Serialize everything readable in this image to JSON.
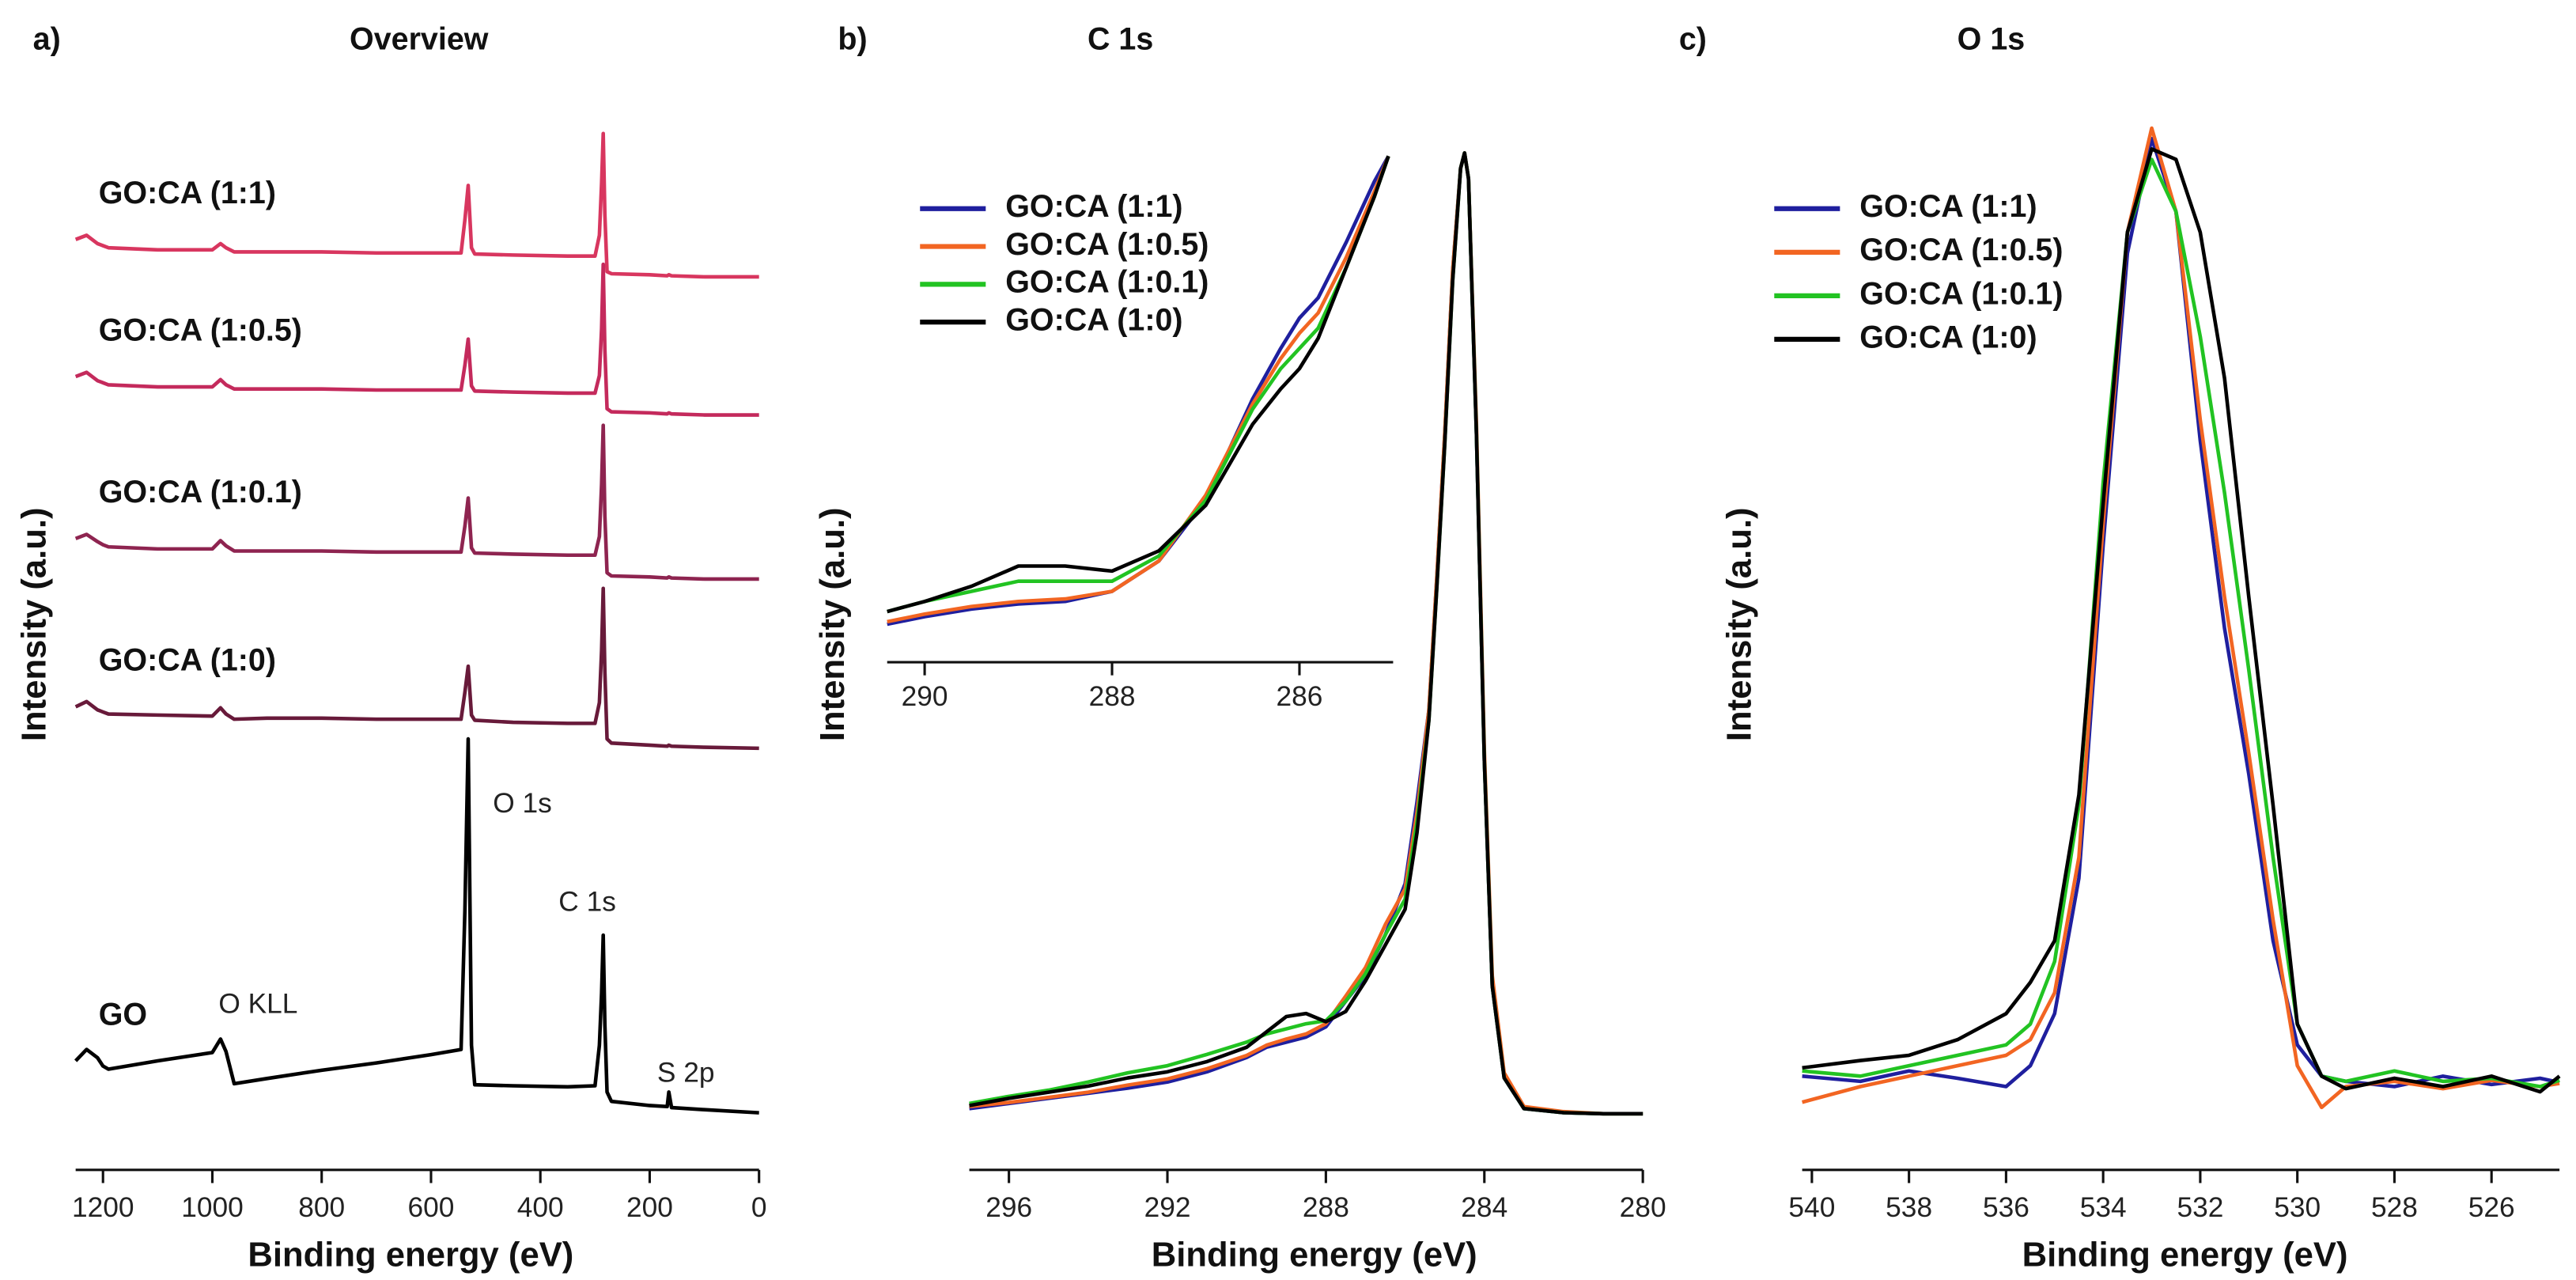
{
  "chart_data": [
    {
      "type": "line",
      "label": "a)",
      "title": "Overview",
      "xlabel": "Binding energy (eV)",
      "ylabel": "Intensity (a.u.)",
      "legend": "inline",
      "x": [
        1250,
        1230,
        1210,
        1200,
        1190,
        1100,
        1000,
        985,
        975,
        960,
        900,
        800,
        700,
        600,
        545,
        538,
        532,
        526,
        520,
        450,
        350,
        300,
        292,
        288,
        285,
        282,
        278,
        270,
        200,
        168,
        165,
        160,
        100,
        0
      ],
      "xlim": [
        1250,
        0
      ],
      "xticks": [
        1200,
        1000,
        800,
        600,
        400,
        200,
        0
      ],
      "ylim": [
        0,
        100
      ],
      "series": [
        {
          "name": "GO:CA (1:1)",
          "color": "#d8365f",
          "values": [
            89.6,
            90.0,
            89.2,
            89.0,
            88.8,
            88.6,
            88.6,
            89.2,
            88.8,
            88.4,
            88.4,
            88.4,
            88.3,
            88.3,
            88.3,
            91.5,
            94.8,
            88.8,
            88.2,
            88.1,
            88.0,
            88.0,
            90,
            95,
            99.8,
            92,
            86.5,
            86.3,
            86.2,
            86.1,
            86.2,
            86.1,
            86.0,
            86.0
          ]
        },
        {
          "name": "GO:CA (1:0.5)",
          "color": "#c42a5c",
          "values": [
            76.4,
            76.8,
            76.0,
            75.8,
            75.6,
            75.4,
            75.4,
            76.1,
            75.6,
            75.2,
            75.2,
            75.2,
            75.1,
            75.1,
            75.1,
            77.5,
            80.0,
            75.5,
            75.0,
            74.9,
            74.8,
            74.8,
            76.5,
            81,
            87.2,
            79,
            73.3,
            73.0,
            72.9,
            72.8,
            72.9,
            72.8,
            72.7,
            72.7
          ]
        },
        {
          "name": "GO:CA (1:0.1)",
          "color": "#8e2450",
          "values": [
            60.8,
            61.2,
            60.5,
            60.2,
            60.0,
            59.8,
            59.8,
            60.6,
            60.1,
            59.6,
            59.6,
            59.6,
            59.5,
            59.5,
            59.5,
            62,
            64.7,
            59.9,
            59.4,
            59.3,
            59.2,
            59.2,
            61,
            66,
            71.7,
            63,
            57.5,
            57.2,
            57.1,
            57.0,
            57.1,
            57.0,
            56.9,
            56.9
          ]
        },
        {
          "name": "GO:CA (1:0)",
          "color": "#681a3a",
          "values": [
            44.6,
            45.1,
            44.3,
            44.1,
            43.9,
            43.8,
            43.7,
            44.5,
            43.9,
            43.4,
            43.5,
            43.5,
            43.4,
            43.4,
            43.4,
            46,
            48.5,
            43.8,
            43.3,
            43.1,
            43.0,
            43.0,
            45,
            50,
            56,
            48,
            41.5,
            41.1,
            40.9,
            40.8,
            40.9,
            40.8,
            40.7,
            40.6
          ]
        },
        {
          "name": "GO",
          "color": "#000000",
          "values": [
            10.5,
            11.6,
            10.8,
            10,
            9.7,
            10.5,
            11.3,
            12.6,
            11.4,
            8.3,
            8.8,
            9.6,
            10.3,
            11.1,
            11.6,
            25,
            41.5,
            12,
            8.2,
            8.1,
            8,
            8.1,
            12,
            17,
            22.6,
            14,
            7.5,
            6.6,
            6.2,
            6.1,
            7.5,
            6.0,
            5.8,
            5.5
          ]
        }
      ],
      "annotations": [
        "O 1s",
        "C 1s",
        "S 2p",
        "O KLL"
      ]
    },
    {
      "type": "line",
      "label": "b)",
      "title": "C 1s",
      "xlabel": "Binding energy (eV)",
      "ylabel": "Intensity (a.u.)",
      "legend": "upper left",
      "x": [
        297,
        296,
        295,
        294,
        293,
        292,
        291,
        290,
        289.5,
        289,
        288.5,
        288,
        287.5,
        287,
        286.5,
        286,
        285.7,
        285.4,
        285.2,
        285,
        284.8,
        284.6,
        284.5,
        284.4,
        284.2,
        284,
        283.8,
        283.5,
        283,
        282,
        281,
        280
      ],
      "xlim": [
        297,
        280
      ],
      "xticks": [
        296,
        292,
        288,
        284,
        280
      ],
      "ylim": [
        0,
        100
      ],
      "series": [
        {
          "name": "GO:CA (1:1)",
          "color": "#1f1f9e",
          "values": [
            6,
            6.5,
            7,
            7.5,
            8,
            8.6,
            9.6,
            11,
            12,
            12.5,
            13,
            14,
            16.5,
            19,
            23,
            28,
            36,
            45,
            58,
            72,
            88,
            98,
            99.5,
            97,
            72,
            40,
            18,
            9,
            6,
            5.6,
            5.5,
            5.5
          ]
        },
        {
          "name": "GO:CA (1:0.5)",
          "color": "#f26522",
          "values": [
            6.2,
            6.6,
            7.1,
            7.6,
            8.3,
            8.9,
            9.9,
            11.2,
            12.2,
            12.8,
            13.3,
            14.3,
            17,
            19.8,
            24,
            27.5,
            35,
            45,
            58,
            72,
            88,
            98,
            99.5,
            97,
            73,
            41,
            19,
            9.5,
            6.2,
            5.7,
            5.5,
            5.5
          ]
        },
        {
          "name": "GO:CA (1:0.1)",
          "color": "#22c322",
          "values": [
            6.5,
            7.2,
            7.8,
            8.6,
            9.5,
            10.2,
            11.3,
            12.5,
            13.3,
            13.8,
            14.3,
            14.6,
            16.5,
            19.2,
            23,
            26.5,
            34,
            44,
            57,
            71,
            87,
            98,
            99.5,
            97,
            72,
            40,
            18,
            9,
            6,
            5.6,
            5.5,
            5.5
          ]
        },
        {
          "name": "GO:CA (1:0)",
          "color": "#000000",
          "values": [
            6.3,
            7,
            7.6,
            8.2,
            9,
            9.6,
            10.6,
            12,
            13.5,
            15,
            15.3,
            14.5,
            15.5,
            18.5,
            22,
            25.5,
            33,
            44,
            57,
            71,
            87,
            98,
            99.5,
            97,
            72,
            40,
            18,
            9,
            6,
            5.6,
            5.5,
            5.5
          ]
        }
      ],
      "inset": {
        "x": [
          290.4,
          290,
          289.5,
          289,
          288.5,
          288,
          287.5,
          287,
          286.5,
          286.2,
          286,
          285.8,
          285.5,
          285.2,
          285.05
        ],
        "xlim": [
          290.4,
          285
        ],
        "xticks": [
          290,
          288,
          286
        ],
        "ylim": [
          0,
          100
        ],
        "series": [
          {
            "color": "#1f1f9e",
            "values": [
              7.5,
              9,
              10.5,
              11.5,
              12,
              14,
              20,
              32,
              52,
              62,
              68,
              72,
              83,
              95,
              100
            ]
          },
          {
            "color": "#f26522",
            "values": [
              8,
              9.5,
              11,
              12,
              12.5,
              14,
              20,
              33,
              51,
              60,
              65,
              69,
              80,
              93,
              100
            ]
          },
          {
            "color": "#22c322",
            "values": [
              10,
              12,
              14,
              16,
              16,
              16,
              21,
              32,
              50,
              58,
              62,
              66,
              78,
              92,
              100
            ]
          },
          {
            "color": "#000000",
            "values": [
              10,
              12,
              15,
              19,
              19,
              18,
              22,
              31,
              47,
              54,
              58,
              64,
              78,
              92,
              100
            ]
          }
        ]
      }
    },
    {
      "type": "line",
      "label": "c)",
      "title": "O 1s",
      "xlabel": "Binding energy (eV)",
      "ylabel": "Intensity (a.u.)",
      "legend": "upper left",
      "x": [
        540.2,
        539,
        538,
        537,
        536,
        535.5,
        535,
        534.5,
        534,
        533.5,
        533,
        532.5,
        532,
        531.5,
        531,
        530.5,
        530,
        529.5,
        529,
        528,
        527,
        526,
        525,
        524.6
      ],
      "xlim": [
        540.2,
        524.6
      ],
      "xticks": [
        540,
        538,
        536,
        534,
        532,
        530,
        528,
        526
      ],
      "ylim": [
        0,
        100
      ],
      "series": [
        {
          "name": "GO:CA (1:1)",
          "color": "#1f1f9e",
          "values": [
            9,
            8.5,
            9.5,
            8.8,
            8,
            10,
            15,
            28,
            60,
            88,
            99,
            92,
            70,
            52,
            38,
            22,
            12,
            9,
            8.5,
            8,
            9,
            8.2,
            8.8,
            8.4
          ]
        },
        {
          "name": "GO:CA (1:0.5)",
          "color": "#f26522",
          "values": [
            6.5,
            8,
            9,
            10,
            11,
            12.5,
            17,
            30,
            62,
            90,
            100,
            92,
            72,
            55,
            40,
            24,
            10,
            6,
            8,
            8.5,
            7.8,
            8.6,
            8,
            8.3
          ]
        },
        {
          "name": "GO:CA (1:0.1)",
          "color": "#22c322",
          "values": [
            9.5,
            9,
            10,
            11,
            12,
            14,
            20,
            35,
            66,
            90,
            97,
            92,
            80,
            65,
            48,
            30,
            14,
            9,
            8.5,
            9.5,
            8.5,
            8.8,
            8,
            8.6
          ]
        },
        {
          "name": "GO:CA (1:0)",
          "color": "#000000",
          "values": [
            9.8,
            10.5,
            11,
            12.5,
            15,
            18,
            22,
            36,
            64,
            90,
            98,
            97,
            90,
            76,
            55,
            35,
            14,
            9,
            7.8,
            8.8,
            8,
            9,
            7.5,
            9
          ]
        }
      ]
    }
  ]
}
